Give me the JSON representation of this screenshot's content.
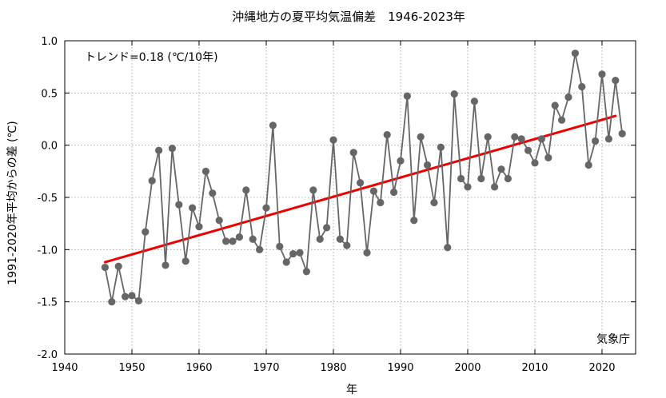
{
  "chart_data": {
    "type": "line",
    "title": "沖縄地方の夏平均気温偏差　1946-2023年",
    "xlabel": "年",
    "ylabel": "1991-2020年平均からの差 (℃)",
    "xlim": [
      1940,
      2025
    ],
    "ylim": [
      -2.0,
      1.0
    ],
    "x_ticks": [
      1940,
      1950,
      1960,
      1970,
      1980,
      1990,
      2000,
      2010,
      2020
    ],
    "y_ticks": [
      -2.0,
      -1.5,
      -1.0,
      -0.5,
      0.0,
      0.5,
      1.0
    ],
    "y_tick_labels": [
      "-2.0",
      "-1.5",
      "-1.0",
      "-0.5",
      "0.0",
      "0.5",
      "1.0"
    ],
    "grid": true,
    "annotation_trend": "トレンド=0.18 (℃/10年)",
    "annotation_source": "気象庁",
    "series": [
      {
        "color": "#666666",
        "x": [
          1946,
          1947,
          1948,
          1949,
          1950,
          1951,
          1952,
          1953,
          1954,
          1955,
          1956,
          1957,
          1958,
          1959,
          1960,
          1961,
          1962,
          1963,
          1964,
          1965,
          1966,
          1967,
          1968,
          1969,
          1970,
          1971,
          1972,
          1973,
          1974,
          1975,
          1976,
          1977,
          1978,
          1979,
          1980,
          1981,
          1982,
          1983,
          1984,
          1985,
          1986,
          1987,
          1988,
          1989,
          1990,
          1991,
          1992,
          1993,
          1994,
          1995,
          1996,
          1997,
          1998,
          1999,
          2000,
          2001,
          2002,
          2003,
          2004,
          2005,
          2006,
          2007,
          2008,
          2009,
          2010,
          2011,
          2012,
          2013,
          2014,
          2015,
          2016,
          2017,
          2018,
          2019,
          2020,
          2021,
          2022,
          2023
        ],
        "y": [
          -1.17,
          -1.5,
          -1.16,
          -1.45,
          -1.44,
          -1.49,
          -0.83,
          -0.34,
          -0.05,
          -1.15,
          -0.03,
          -0.57,
          -1.11,
          -0.6,
          -0.78,
          -0.25,
          -0.46,
          -0.72,
          -0.92,
          -0.92,
          -0.88,
          -0.43,
          -0.9,
          -1.0,
          -0.6,
          0.19,
          -0.97,
          -1.12,
          -1.04,
          -1.03,
          -1.21,
          -0.43,
          -0.9,
          -0.79,
          0.05,
          -0.9,
          -0.96,
          -0.07,
          -0.36,
          -1.03,
          -0.44,
          -0.55,
          0.1,
          -0.45,
          -0.15,
          0.47,
          -0.72,
          0.08,
          -0.19,
          -0.55,
          -0.02,
          -0.98,
          0.49,
          -0.32,
          -0.4,
          0.42,
          -0.32,
          0.08,
          -0.4,
          -0.23,
          -0.32,
          0.08,
          0.06,
          -0.05,
          -0.17,
          0.06,
          -0.12,
          0.38,
          0.24,
          0.46,
          0.88,
          0.56,
          -0.19,
          0.04,
          0.68,
          0.06,
          0.62,
          0.11
        ]
      }
    ],
    "trend_line": {
      "color": "#ee0000",
      "x": [
        1946,
        2022
      ],
      "y": [
        -1.12,
        0.28
      ]
    }
  }
}
